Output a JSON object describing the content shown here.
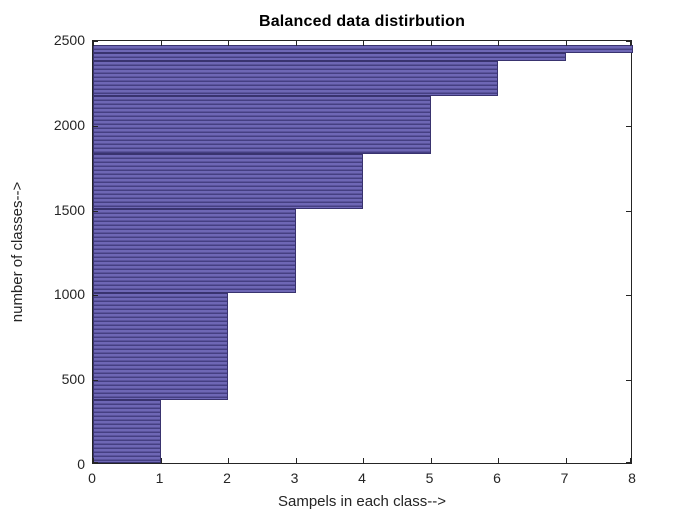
{
  "chart_data": {
    "type": "bar",
    "orientation": "horizontal",
    "title": "Balanced data distirbution",
    "xlabel": "Sampels in each class-->",
    "ylabel": "number of classes-->",
    "xlim": [
      0,
      8
    ],
    "ylim": [
      0,
      2500
    ],
    "x_ticks": [
      0,
      1,
      2,
      3,
      4,
      5,
      6,
      7,
      8
    ],
    "y_ticks": [
      0,
      500,
      1000,
      1500,
      2000,
      2500
    ],
    "grid": false,
    "legend": null,
    "box": true,
    "tick_direction": "in",
    "colors": {
      "bar_fill": "#6e67b5",
      "bar_stripe": "#453f82",
      "bar_edge": "#39336f",
      "axis": "#252525",
      "title": "#000000",
      "background": "#ffffff"
    },
    "note": "Horizontal bar chart of ~2465 classes sorted ascending by samples per class; dense bars merge into striped step bands",
    "bands": [
      {
        "samples_in_class": 1,
        "class_index_from": 0,
        "class_index_to": 370
      },
      {
        "samples_in_class": 2,
        "class_index_from": 370,
        "class_index_to": 1005
      },
      {
        "samples_in_class": 3,
        "class_index_from": 1005,
        "class_index_to": 1500
      },
      {
        "samples_in_class": 4,
        "class_index_from": 1500,
        "class_index_to": 1820
      },
      {
        "samples_in_class": 5,
        "class_index_from": 1820,
        "class_index_to": 2165
      },
      {
        "samples_in_class": 6,
        "class_index_from": 2165,
        "class_index_to": 2370
      },
      {
        "samples_in_class": 7,
        "class_index_from": 2370,
        "class_index_to": 2415
      },
      {
        "samples_in_class": 8,
        "class_index_from": 2415,
        "class_index_to": 2465
      }
    ]
  }
}
